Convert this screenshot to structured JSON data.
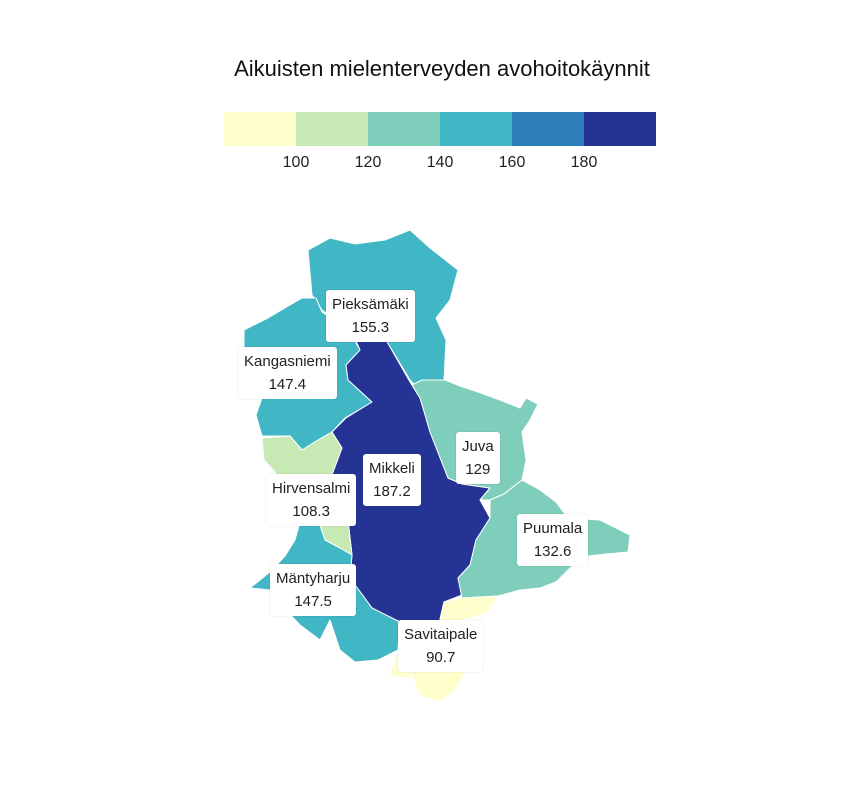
{
  "title": "Aikuisten mielenterveyden avohoitokäynnit",
  "legend": {
    "colors": [
      "#ffffcc",
      "#c7e9b4",
      "#7fcdbb",
      "#41b6c4",
      "#2c7fb8",
      "#253494"
    ],
    "ticks": [
      "100",
      "120",
      "140",
      "160",
      "180"
    ]
  },
  "chart_data": {
    "type": "choropleth",
    "bins": [
      [
        null,
        100
      ],
      [
        100,
        120
      ],
      [
        120,
        140
      ],
      [
        140,
        160
      ],
      [
        160,
        180
      ],
      [
        180,
        null
      ]
    ],
    "regions": [
      {
        "name": "Pieksämäki",
        "value": "155.3",
        "color": "#41b6c4"
      },
      {
        "name": "Kangasniemi",
        "value": "147.4",
        "color": "#41b6c4"
      },
      {
        "name": "Mikkeli",
        "value": "187.2",
        "color": "#253494"
      },
      {
        "name": "Hirvensalmi",
        "value": "108.3",
        "color": "#c7e9b4"
      },
      {
        "name": "Juva",
        "value": "129",
        "color": "#7fcdbb"
      },
      {
        "name": "Puumala",
        "value": "132.6",
        "color": "#7fcdbb"
      },
      {
        "name": "Mäntyharju",
        "value": "147.5",
        "color": "#41b6c4"
      },
      {
        "name": "Savitaipale",
        "value": "90.7",
        "color": "#ffffcc"
      }
    ]
  }
}
